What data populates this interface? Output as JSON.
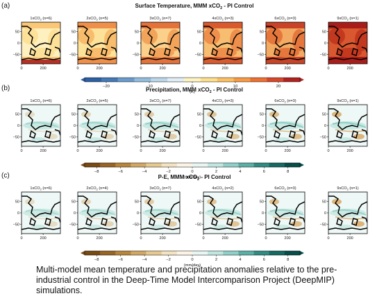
{
  "figure": {
    "panels": [
      {
        "letter": "(a)",
        "title_main": "Surface Temperature, MMM xCO",
        "title_rest": " - PI Control",
        "cases": [
          "1xCO",
          "2xCO",
          "3xCO",
          "4xCO",
          "6xCO",
          "9xCO"
        ],
        "counts": [
          "(n=6)",
          "(n=5)",
          "(n=7)",
          "(n=3)",
          "(n=3)",
          "(n=1)"
        ],
        "colorbar": {
          "ticks": [
            "−20",
            "−10",
            "0",
            "10",
            "20"
          ],
          "tick_values": [
            -20,
            -10,
            0,
            10,
            20
          ],
          "range": [
            -25,
            25
          ],
          "unit": "(K)",
          "colors": [
            "#2c5fa3",
            "#4579b7",
            "#6a9bcc",
            "#93bcdd",
            "#bcd7ea",
            "#e1eef6",
            "#fdf4c0",
            "#fde08c",
            "#fcc063",
            "#f89a43",
            "#ee7032",
            "#d8472a",
            "#b02220"
          ]
        }
      },
      {
        "letter": "(b)",
        "title_main": "Precipitation, MMM xCO",
        "title_rest": " - PI Control",
        "cases": [
          "1xCO",
          "2xCO",
          "3xCO",
          "4xCO",
          "6xCO",
          "9xCO"
        ],
        "counts": [
          "(n=6)",
          "(n=5)",
          "(n=7)",
          "(n=3)",
          "(n=3)",
          "(n=1)"
        ],
        "colorbar": {
          "ticks": [
            "−8",
            "−6",
            "−4",
            "−2",
            "0",
            "2",
            "4",
            "6",
            "8"
          ],
          "tick_values": [
            -8,
            -6,
            -4,
            -2,
            0,
            2,
            4,
            6,
            8
          ],
          "range": [
            -9,
            9
          ],
          "unit": "(mm/day)",
          "colors": [
            "#7a4a12",
            "#9a6424",
            "#b98539",
            "#d2a763",
            "#e6c98f",
            "#f3e3c0",
            "#fbf4e6",
            "#e8f5f2",
            "#bfe6e0",
            "#8ed0c7",
            "#58b0a6",
            "#2f8c83",
            "#156b63",
            "#064e48"
          ]
        }
      },
      {
        "letter": "(c)",
        "title_main": "P-E, MMM xCO",
        "title_rest": " - PI Control",
        "cases": [
          "1xCO",
          "2xCO",
          "3xCO",
          "4xCO",
          "6xCO",
          "9xCO"
        ],
        "counts": [
          "(n=6)",
          "(n=4)",
          "(n=7)",
          "(n=2)",
          "(n=3)",
          "(n=1)"
        ],
        "colorbar": {
          "ticks": [
            "−8",
            "−6",
            "−4",
            "−2",
            "0",
            "2",
            "4",
            "6",
            "8"
          ],
          "tick_values": [
            -8,
            -6,
            -4,
            -2,
            0,
            2,
            4,
            6,
            8
          ],
          "range": [
            -9,
            9
          ],
          "unit": "(mm/day)",
          "colors": [
            "#7a4a12",
            "#9a6424",
            "#b98539",
            "#d2a763",
            "#e6c98f",
            "#f3e3c0",
            "#fbf4e6",
            "#e8f5f2",
            "#bfe6e0",
            "#8ed0c7",
            "#58b0a6",
            "#2f8c83",
            "#156b63",
            "#064e48"
          ]
        }
      }
    ],
    "y_ticks": [
      "50",
      "0",
      "−50"
    ],
    "y_tick_values": [
      50,
      0,
      -50
    ],
    "x_ticks": [
      "0",
      "200"
    ],
    "x_tick_values": [
      0,
      200
    ],
    "co2_subscript": "2"
  },
  "caption": "Multi-model mean temperature and precipitation anomalies relative to the pre-industrial control in the Deep-Time Model Intercomparison Project (DeepMIP) simulations."
}
